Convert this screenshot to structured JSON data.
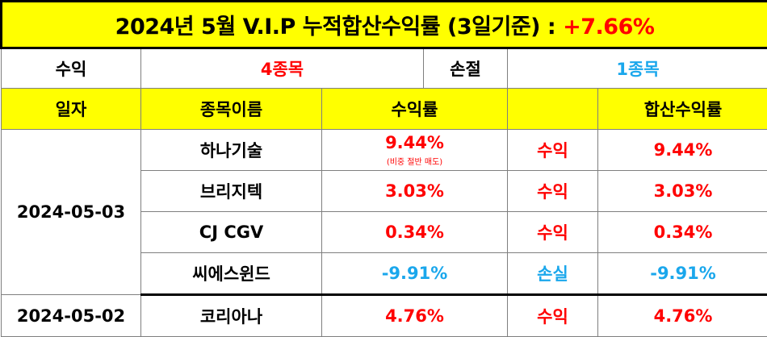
{
  "title": {
    "text": "2024년 5월 V.I.P 누적합산수익률 (3일기준)",
    "colon": " : ",
    "total_return": "+7.66%"
  },
  "summary": {
    "profit_label": "수익",
    "profit_count": "4종목",
    "loss_label": "손절",
    "loss_count": "1종목"
  },
  "headers": [
    "일자",
    "종목이름",
    "수익률",
    "",
    "합산수익률"
  ],
  "groups": [
    {
      "date": "2024-05-03",
      "rows": [
        {
          "name": "하나기술",
          "return": "9.44%",
          "note": "(비중 절반 매도)",
          "status": "수익",
          "total": "9.44%"
        },
        {
          "name": "브리지텍",
          "return": "3.03%",
          "status": "수익",
          "total": "3.03%"
        },
        {
          "name": "CJ CGV",
          "return": "0.34%",
          "status": "수익",
          "total": "0.34%"
        },
        {
          "name": "씨에스윈드",
          "return": "-9.91%",
          "status": "손실",
          "total": "-9.91%"
        }
      ]
    },
    {
      "date": "2024-05-02",
      "rows": [
        {
          "name": "코리아나",
          "return": "4.76%",
          "status": "수익",
          "total": "4.76%"
        }
      ]
    }
  ],
  "colors": {
    "header_bg": "#ffff00",
    "positive": "#ff0000",
    "negative": "#1aa7ec"
  }
}
